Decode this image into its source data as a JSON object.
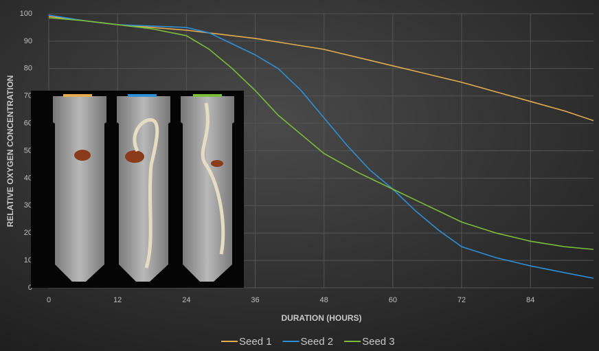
{
  "chart_data": {
    "type": "line",
    "xlabel": "DURATION (HOURS)",
    "ylabel": "RELATIVE OXYGEN CONCENTRATION",
    "xlim": [
      0,
      95
    ],
    "xticks": [
      0,
      12,
      24,
      36,
      48,
      60,
      72,
      84
    ],
    "ylim": [
      0,
      100
    ],
    "yticks": [
      0,
      10,
      20,
      30,
      40,
      50,
      60,
      70,
      80,
      90,
      100
    ],
    "grid": true,
    "legend": "bottom",
    "series": [
      {
        "name": "Seed 1",
        "color": "#e3ad4f",
        "x": [
          0,
          6,
          12,
          18,
          24,
          30,
          36,
          42,
          48,
          54,
          60,
          66,
          72,
          78,
          84,
          90,
          95
        ],
        "values": [
          99,
          97.5,
          96,
          95,
          94,
          92.5,
          91,
          89,
          87,
          84,
          81,
          78,
          75,
          71.5,
          68,
          64.5,
          61
        ]
      },
      {
        "name": "Seed 2",
        "color": "#2f8fd6",
        "x": [
          0,
          6,
          12,
          18,
          24,
          28,
          32,
          36,
          40,
          44,
          48,
          52,
          56,
          60,
          64,
          68,
          72,
          78,
          84,
          90,
          95
        ],
        "values": [
          99.5,
          97.5,
          96,
          95.5,
          95,
          93,
          89,
          85,
          80,
          72,
          62,
          52,
          43,
          36,
          28,
          21,
          15,
          11,
          8,
          5.5,
          3.5
        ]
      },
      {
        "name": "Seed 3",
        "color": "#7cbd3a",
        "x": [
          0,
          6,
          12,
          18,
          24,
          28,
          32,
          36,
          40,
          44,
          48,
          54,
          60,
          66,
          72,
          78,
          84,
          90,
          95
        ],
        "values": [
          98.5,
          97.5,
          96,
          94.5,
          92,
          87,
          80,
          72,
          63,
          56,
          49,
          42,
          36,
          30,
          24,
          20,
          17,
          15,
          14
        ]
      }
    ]
  }
}
